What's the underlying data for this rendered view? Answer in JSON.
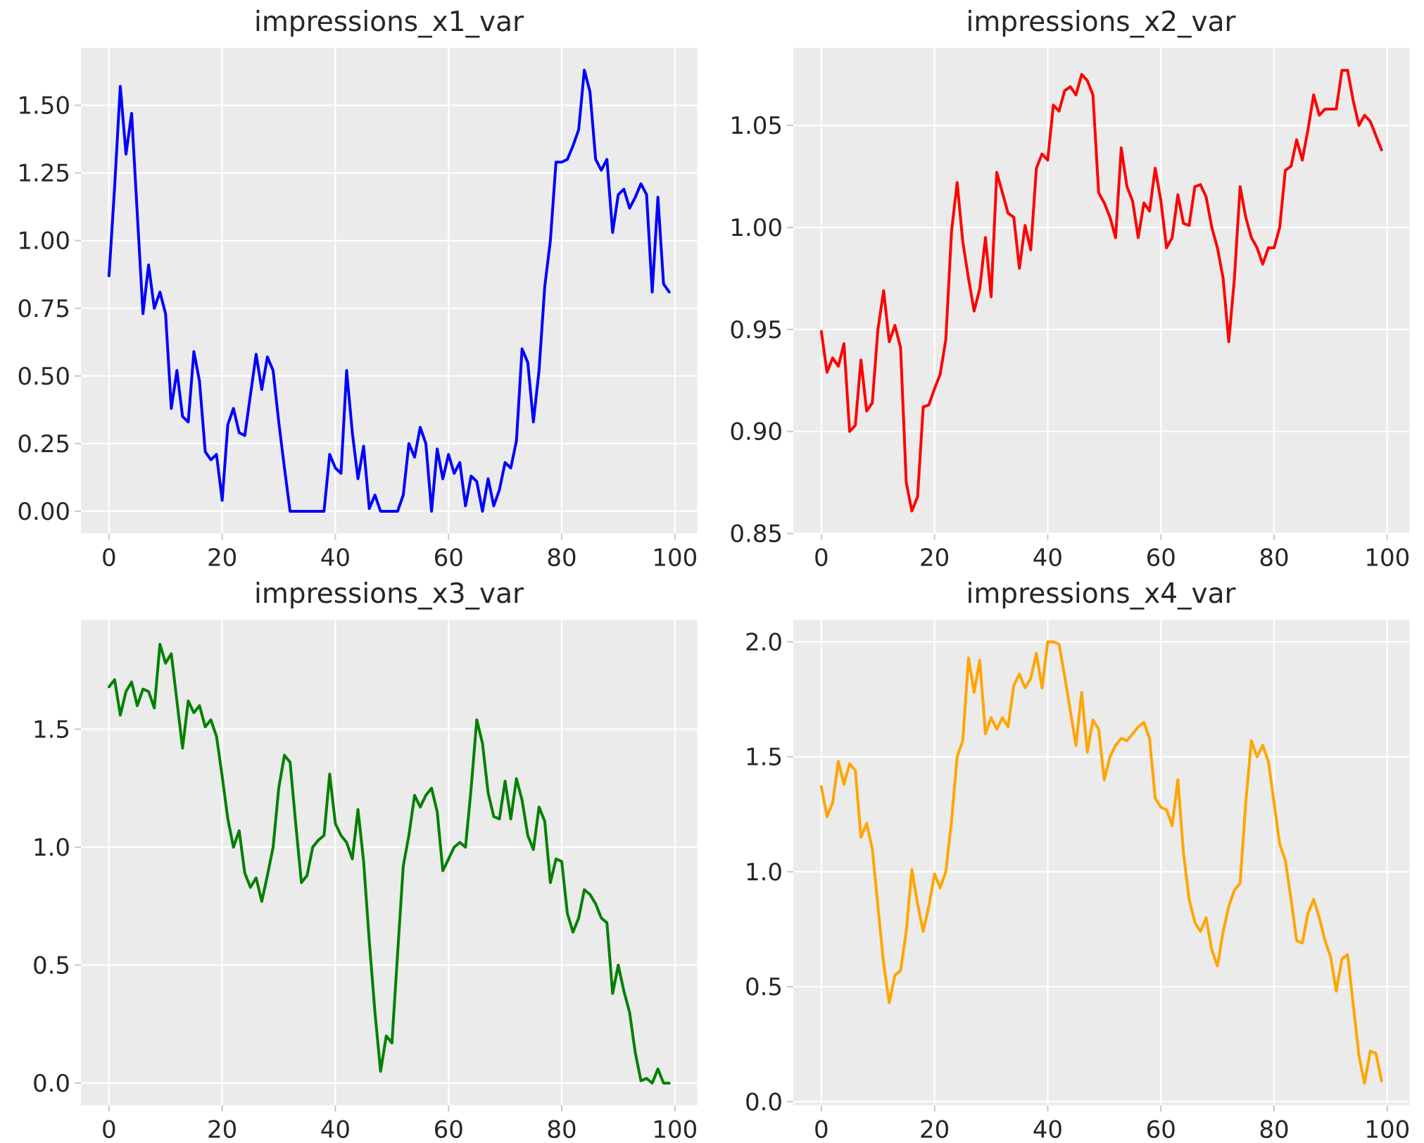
{
  "figure": {
    "background": "#ffffff",
    "axes_background": "#ebebeb",
    "grid_color": "#ffffff",
    "text_color": "#262626",
    "tick_color": "#c7c7c7"
  },
  "chart_data": [
    {
      "type": "line",
      "title": "impressions_x1_var",
      "color": "#0000ff",
      "xlabel": "",
      "ylabel": "",
      "grid": true,
      "legend": null,
      "x_start": 0,
      "x_step": 1,
      "xlim": [
        -4.95,
        103.95
      ],
      "ylim": [
        -0.082,
        1.712
      ],
      "x_tick_values": [
        0,
        20,
        40,
        60,
        80,
        100
      ],
      "x_tick_labels": [
        "0",
        "20",
        "40",
        "60",
        "80",
        "100"
      ],
      "y_tick_values": [
        0.0,
        0.25,
        0.5,
        0.75,
        1.0,
        1.25,
        1.5
      ],
      "y_tick_labels": [
        "0.00",
        "0.25",
        "0.50",
        "0.75",
        "1.00",
        "1.25",
        "1.50"
      ],
      "values": [
        0.87,
        1.2,
        1.57,
        1.32,
        1.47,
        1.1,
        0.73,
        0.91,
        0.75,
        0.81,
        0.73,
        0.38,
        0.52,
        0.35,
        0.33,
        0.59,
        0.48,
        0.22,
        0.19,
        0.21,
        0.04,
        0.32,
        0.38,
        0.29,
        0.28,
        0.43,
        0.58,
        0.45,
        0.57,
        0.52,
        0.33,
        0.16,
        0.0,
        0.0,
        0.0,
        0.0,
        0.0,
        0.0,
        0.0,
        0.21,
        0.16,
        0.14,
        0.52,
        0.29,
        0.12,
        0.24,
        0.01,
        0.06,
        0.0,
        0.0,
        0.0,
        0.0,
        0.06,
        0.25,
        0.2,
        0.31,
        0.25,
        0.0,
        0.23,
        0.12,
        0.21,
        0.14,
        0.18,
        0.02,
        0.13,
        0.11,
        0.0,
        0.12,
        0.02,
        0.08,
        0.18,
        0.16,
        0.26,
        0.6,
        0.55,
        0.33,
        0.52,
        0.83,
        1.0,
        1.29,
        1.29,
        1.3,
        1.35,
        1.41,
        1.63,
        1.55,
        1.3,
        1.26,
        1.3,
        1.03,
        1.17,
        1.19,
        1.12,
        1.16,
        1.21,
        1.17,
        0.81,
        1.16,
        0.84,
        0.81
      ]
    },
    {
      "type": "line",
      "title": "impressions_x2_var",
      "color": "#ff0000",
      "xlabel": "",
      "ylabel": "",
      "grid": true,
      "legend": null,
      "x_start": 0,
      "x_step": 1,
      "xlim": [
        -4.95,
        103.95
      ],
      "ylim": [
        0.85,
        1.088
      ],
      "x_tick_values": [
        0,
        20,
        40,
        60,
        80,
        100
      ],
      "x_tick_labels": [
        "0",
        "20",
        "40",
        "60",
        "80",
        "100"
      ],
      "y_tick_values": [
        0.85,
        0.9,
        0.95,
        1.0,
        1.05
      ],
      "y_tick_labels": [
        "0.85",
        "0.90",
        "0.95",
        "1.00",
        "1.05"
      ],
      "values": [
        0.949,
        0.929,
        0.936,
        0.932,
        0.943,
        0.9,
        0.903,
        0.935,
        0.91,
        0.914,
        0.95,
        0.969,
        0.944,
        0.952,
        0.941,
        0.875,
        0.861,
        0.868,
        0.912,
        0.913,
        0.921,
        0.928,
        0.945,
        0.998,
        1.022,
        0.993,
        0.975,
        0.959,
        0.97,
        0.995,
        0.966,
        1.027,
        1.017,
        1.007,
        1.005,
        0.98,
        1.001,
        0.989,
        1.029,
        1.036,
        1.033,
        1.06,
        1.057,
        1.067,
        1.069,
        1.065,
        1.075,
        1.072,
        1.065,
        1.017,
        1.012,
        1.005,
        0.995,
        1.039,
        1.02,
        1.013,
        0.995,
        1.012,
        1.008,
        1.029,
        1.013,
        0.99,
        0.995,
        1.016,
        1.002,
        1.001,
        1.02,
        1.021,
        1.015,
        1.0,
        0.99,
        0.975,
        0.944,
        0.975,
        1.02,
        1.005,
        0.995,
        0.99,
        0.982,
        0.99,
        0.99,
        1.0,
        1.028,
        1.03,
        1.043,
        1.033,
        1.048,
        1.065,
        1.055,
        1.058,
        1.058,
        1.058,
        1.077,
        1.077,
        1.062,
        1.05,
        1.055,
        1.052,
        1.045,
        1.038
      ]
    },
    {
      "type": "line",
      "title": "impressions_x3_var",
      "color": "#008000",
      "xlabel": "",
      "ylabel": "",
      "grid": true,
      "legend": null,
      "x_start": 0,
      "x_step": 1,
      "xlim": [
        -4.95,
        103.95
      ],
      "ylim": [
        -0.094,
        1.964
      ],
      "x_tick_values": [
        0,
        20,
        40,
        60,
        80,
        100
      ],
      "x_tick_labels": [
        "0",
        "20",
        "40",
        "60",
        "80",
        "100"
      ],
      "y_tick_values": [
        0.0,
        0.5,
        1.0,
        1.5
      ],
      "y_tick_labels": [
        "0.0",
        "0.5",
        "1.0",
        "1.5"
      ],
      "values": [
        1.68,
        1.71,
        1.56,
        1.66,
        1.7,
        1.6,
        1.67,
        1.66,
        1.59,
        1.86,
        1.78,
        1.82,
        1.62,
        1.42,
        1.62,
        1.57,
        1.6,
        1.51,
        1.54,
        1.47,
        1.3,
        1.12,
        1.0,
        1.07,
        0.89,
        0.83,
        0.87,
        0.77,
        0.88,
        1.0,
        1.25,
        1.39,
        1.36,
        1.1,
        0.85,
        0.88,
        1.0,
        1.03,
        1.05,
        1.31,
        1.1,
        1.05,
        1.02,
        0.95,
        1.16,
        0.94,
        0.6,
        0.3,
        0.05,
        0.2,
        0.17,
        0.55,
        0.92,
        1.05,
        1.22,
        1.17,
        1.22,
        1.25,
        1.15,
        0.9,
        0.95,
        1.0,
        1.02,
        1.0,
        1.25,
        1.54,
        1.44,
        1.23,
        1.13,
        1.12,
        1.28,
        1.12,
        1.29,
        1.2,
        1.05,
        0.99,
        1.17,
        1.11,
        0.85,
        0.95,
        0.94,
        0.72,
        0.64,
        0.7,
        0.82,
        0.8,
        0.76,
        0.7,
        0.68,
        0.38,
        0.5,
        0.39,
        0.3,
        0.13,
        0.01,
        0.02,
        0.0,
        0.06,
        0.0,
        0.0
      ]
    },
    {
      "type": "line",
      "title": "impressions_x4_var",
      "color": "#ffa500",
      "xlabel": "",
      "ylabel": "",
      "grid": true,
      "legend": null,
      "x_start": 0,
      "x_step": 1,
      "xlim": [
        -4.95,
        103.95
      ],
      "ylim": [
        -0.016,
        2.096
      ],
      "x_tick_values": [
        0,
        20,
        40,
        60,
        80,
        100
      ],
      "x_tick_labels": [
        "0",
        "20",
        "40",
        "60",
        "80",
        "100"
      ],
      "y_tick_values": [
        0.0,
        0.5,
        1.0,
        1.5,
        2.0
      ],
      "y_tick_labels": [
        "0.0",
        "0.5",
        "1.0",
        "1.5",
        "2.0"
      ],
      "values": [
        1.37,
        1.24,
        1.3,
        1.48,
        1.38,
        1.47,
        1.44,
        1.15,
        1.21,
        1.1,
        0.85,
        0.6,
        0.43,
        0.55,
        0.57,
        0.74,
        1.01,
        0.86,
        0.74,
        0.85,
        0.99,
        0.93,
        1.0,
        1.22,
        1.5,
        1.57,
        1.93,
        1.78,
        1.92,
        1.6,
        1.67,
        1.62,
        1.67,
        1.63,
        1.81,
        1.86,
        1.8,
        1.84,
        1.95,
        1.8,
        2.0,
        2.0,
        1.99,
        1.85,
        1.7,
        1.55,
        1.78,
        1.52,
        1.66,
        1.62,
        1.4,
        1.5,
        1.55,
        1.58,
        1.57,
        1.6,
        1.63,
        1.65,
        1.58,
        1.32,
        1.28,
        1.27,
        1.2,
        1.4,
        1.08,
        0.88,
        0.78,
        0.74,
        0.8,
        0.66,
        0.59,
        0.74,
        0.85,
        0.92,
        0.95,
        1.3,
        1.57,
        1.5,
        1.55,
        1.48,
        1.3,
        1.12,
        1.05,
        0.88,
        0.7,
        0.69,
        0.82,
        0.88,
        0.8,
        0.7,
        0.63,
        0.48,
        0.62,
        0.64,
        0.42,
        0.2,
        0.08,
        0.22,
        0.21,
        0.09
      ]
    }
  ]
}
